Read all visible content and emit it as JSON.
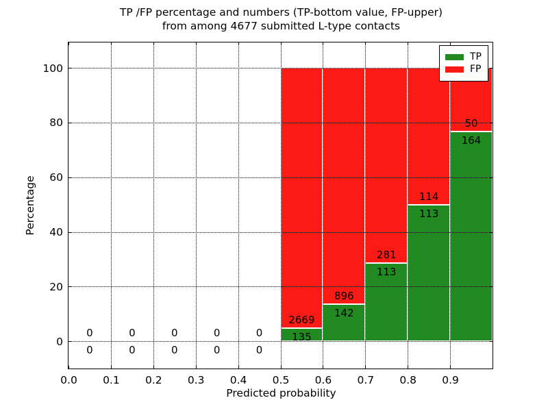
{
  "title": {
    "line1": "TP /FP percentage and numbers (TP-bottom value, FP-upper)",
    "line2": "from among 4677 submitted L-type contacts"
  },
  "axes": {
    "xlabel": "Predicted probability",
    "ylabel": "Percentage",
    "x_tick_labels": [
      "0.0",
      "0.1",
      "0.2",
      "0.3",
      "0.4",
      "0.5",
      "0.6",
      "0.7",
      "0.8",
      "0.9"
    ],
    "x_tick_values": [
      0.0,
      0.1,
      0.2,
      0.3,
      0.4,
      0.5,
      0.6,
      0.7,
      0.8,
      0.9
    ],
    "y_tick_labels": [
      "0",
      "20",
      "40",
      "60",
      "80",
      "100"
    ],
    "y_tick_values": [
      0,
      20,
      40,
      60,
      80,
      100
    ],
    "xlim": [
      0.0,
      1.0
    ],
    "ylim": [
      -10.0,
      109.3
    ],
    "grid_style": "dotted"
  },
  "legend": {
    "position": "upper-right",
    "items": [
      {
        "label": "TP",
        "color": "#218a21"
      },
      {
        "label": "FP",
        "color": "#fb1b14"
      }
    ]
  },
  "chart_data": {
    "type": "bar",
    "stacked": true,
    "title": "TP /FP percentage and numbers (TP-bottom value, FP-upper) from among 4677 submitted L-type contacts",
    "xlabel": "Predicted probability",
    "ylabel": "Percentage",
    "total_submitted_contacts": 4677,
    "bin_width": 0.1,
    "note": "Each bar stacks TP% (green, bottom) and FP% (red, top) to 100%; numeric labels are raw counts with TP at bottom and FP above; bins below 0.5 contain 0 TP and 0 FP",
    "bins": [
      {
        "x_start": 0.0,
        "tp_count": 0,
        "fp_count": 0
      },
      {
        "x_start": 0.1,
        "tp_count": 0,
        "fp_count": 0
      },
      {
        "x_start": 0.2,
        "tp_count": 0,
        "fp_count": 0
      },
      {
        "x_start": 0.3,
        "tp_count": 0,
        "fp_count": 0
      },
      {
        "x_start": 0.4,
        "tp_count": 0,
        "fp_count": 0
      },
      {
        "x_start": 0.5,
        "tp_count": 135,
        "fp_count": 2669
      },
      {
        "x_start": 0.6,
        "tp_count": 142,
        "fp_count": 896
      },
      {
        "x_start": 0.7,
        "tp_count": 113,
        "fp_count": 281
      },
      {
        "x_start": 0.8,
        "tp_count": 113,
        "fp_count": 114
      },
      {
        "x_start": 0.9,
        "tp_count": 164,
        "fp_count": 50
      }
    ],
    "series": [
      {
        "name": "TP",
        "color": "#218a21",
        "percentages": [
          0,
          0,
          0,
          0,
          0,
          4.8,
          13.7,
          28.7,
          49.8,
          76.6
        ]
      },
      {
        "name": "FP",
        "color": "#fb1b14",
        "percentages": [
          0,
          0,
          0,
          0,
          0,
          95.2,
          86.3,
          71.3,
          50.2,
          23.4
        ]
      }
    ]
  }
}
